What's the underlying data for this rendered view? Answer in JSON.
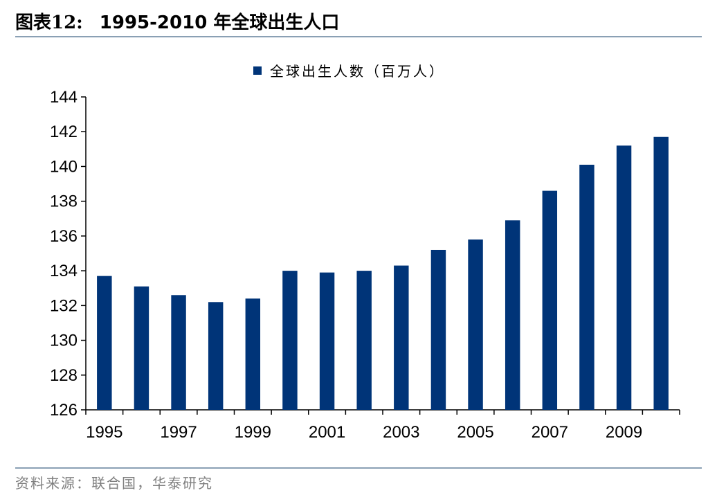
{
  "header": {
    "figure_label": "图表12:",
    "figure_title": "1995-2010 年全球出生人口"
  },
  "footer": {
    "source": "资料来源：联合国，华泰研究"
  },
  "colors": {
    "bar": "#003478",
    "rule": "#8aa0b4",
    "axis": "#000000",
    "source_text": "#7f7f7f"
  },
  "chart_data": {
    "type": "bar",
    "title": "",
    "xlabel": "",
    "ylabel": "",
    "categories": [
      "1995",
      "1996",
      "1997",
      "1998",
      "1999",
      "2000",
      "2001",
      "2002",
      "2003",
      "2004",
      "2005",
      "2006",
      "2007",
      "2008",
      "2009",
      "2010"
    ],
    "x_tick_labels": [
      "1995",
      "",
      "1997",
      "",
      "1999",
      "",
      "2001",
      "",
      "2003",
      "",
      "2005",
      "",
      "2007",
      "",
      "2009",
      ""
    ],
    "series": [
      {
        "name": "全球出生人数（百万人）",
        "values": [
          133.7,
          133.1,
          132.6,
          132.2,
          132.4,
          134.0,
          133.9,
          134.0,
          134.3,
          135.2,
          135.8,
          136.9,
          138.6,
          140.1,
          141.2,
          141.7
        ]
      }
    ],
    "ylim": [
      126,
      144
    ],
    "yticks": [
      126,
      128,
      130,
      132,
      134,
      136,
      138,
      140,
      142,
      144
    ],
    "grid": false,
    "legend_position": "top-center"
  }
}
